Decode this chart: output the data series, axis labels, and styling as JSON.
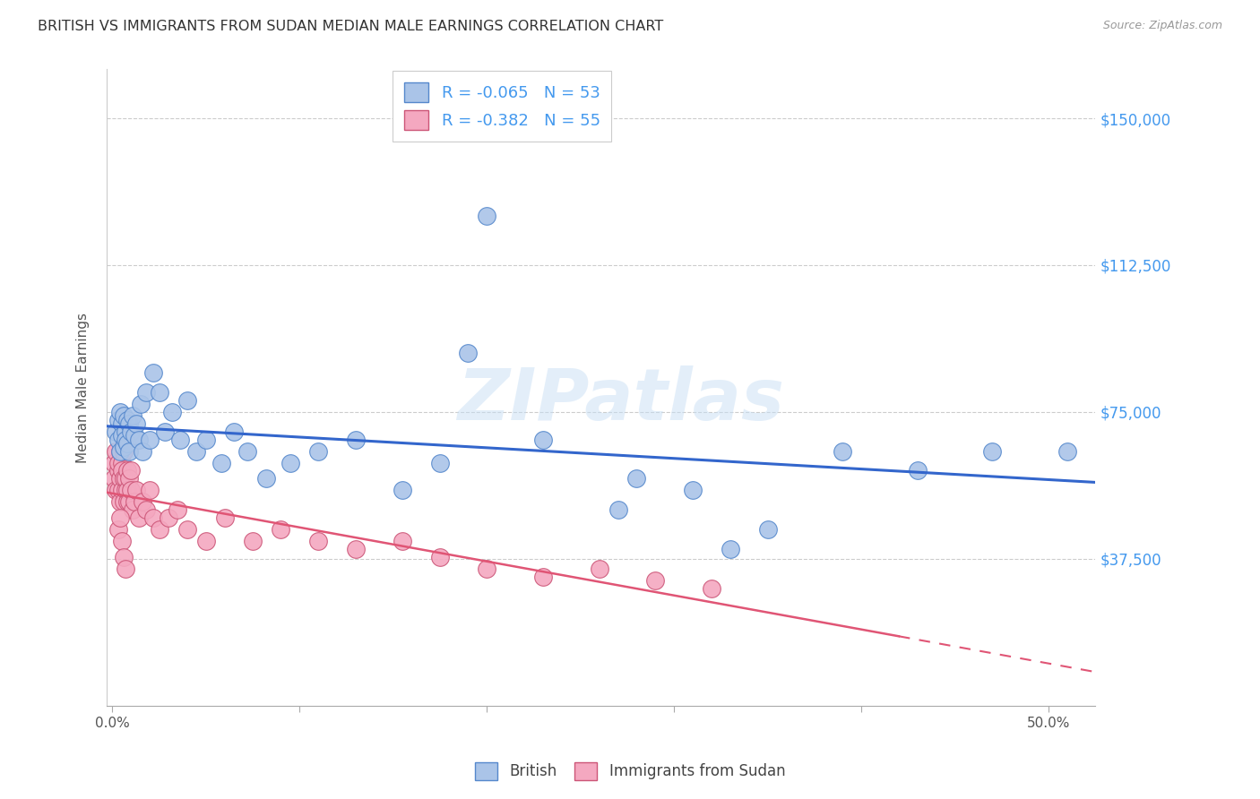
{
  "title": "BRITISH VS IMMIGRANTS FROM SUDAN MEDIAN MALE EARNINGS CORRELATION CHART",
  "source": "Source: ZipAtlas.com",
  "ylabel": "Median Male Earnings",
  "ytick_labels": [
    "$37,500",
    "$75,000",
    "$112,500",
    "$150,000"
  ],
  "ytick_values": [
    37500,
    75000,
    112500,
    150000
  ],
  "ymin": 0,
  "ymax": 162500,
  "xmin": -0.003,
  "xmax": 0.525,
  "watermark": "ZIPatlas",
  "legend_british_r": "-0.065",
  "legend_british_n": "53",
  "legend_sudan_r": "-0.382",
  "legend_sudan_n": "55",
  "british_color": "#aac4e8",
  "british_edge": "#5588cc",
  "sudan_color": "#f4a8c0",
  "sudan_edge": "#cc5577",
  "british_line_color": "#3366cc",
  "sudan_line_color": "#e05575",
  "background_color": "#ffffff",
  "grid_color": "#cccccc",
  "title_color": "#333333",
  "axis_label_color": "#555555",
  "right_tick_color": "#4499ee",
  "sudan_line_solid_end": 0.42,
  "british_x": [
    0.002,
    0.003,
    0.003,
    0.004,
    0.004,
    0.005,
    0.005,
    0.006,
    0.006,
    0.007,
    0.007,
    0.008,
    0.008,
    0.009,
    0.009,
    0.01,
    0.011,
    0.012,
    0.013,
    0.014,
    0.015,
    0.016,
    0.018,
    0.02,
    0.022,
    0.025,
    0.028,
    0.032,
    0.036,
    0.04,
    0.045,
    0.05,
    0.058,
    0.065,
    0.072,
    0.082,
    0.095,
    0.11,
    0.13,
    0.155,
    0.175,
    0.2,
    0.23,
    0.27,
    0.31,
    0.35,
    0.39,
    0.43,
    0.47,
    0.51,
    0.33,
    0.28,
    0.19
  ],
  "british_y": [
    70000,
    73000,
    68000,
    75000,
    65000,
    72000,
    69000,
    74000,
    66000,
    70000,
    68000,
    73000,
    67000,
    72000,
    65000,
    70000,
    74000,
    69000,
    72000,
    68000,
    77000,
    65000,
    80000,
    68000,
    85000,
    80000,
    70000,
    75000,
    68000,
    78000,
    65000,
    68000,
    62000,
    70000,
    65000,
    58000,
    62000,
    65000,
    68000,
    55000,
    62000,
    125000,
    68000,
    50000,
    55000,
    45000,
    65000,
    60000,
    65000,
    65000,
    40000,
    58000,
    90000
  ],
  "sudan_x": [
    0.001,
    0.001,
    0.002,
    0.002,
    0.003,
    0.003,
    0.003,
    0.004,
    0.004,
    0.004,
    0.005,
    0.005,
    0.005,
    0.006,
    0.006,
    0.006,
    0.007,
    0.007,
    0.008,
    0.008,
    0.008,
    0.009,
    0.009,
    0.01,
    0.01,
    0.011,
    0.012,
    0.013,
    0.014,
    0.016,
    0.018,
    0.02,
    0.022,
    0.025,
    0.03,
    0.035,
    0.04,
    0.05,
    0.06,
    0.075,
    0.09,
    0.11,
    0.13,
    0.155,
    0.175,
    0.2,
    0.23,
    0.26,
    0.29,
    0.32,
    0.003,
    0.004,
    0.005,
    0.006,
    0.007
  ],
  "sudan_y": [
    62000,
    58000,
    65000,
    55000,
    60000,
    62000,
    55000,
    65000,
    58000,
    52000,
    62000,
    55000,
    60000,
    58000,
    52000,
    65000,
    55000,
    58000,
    60000,
    52000,
    55000,
    58000,
    52000,
    60000,
    55000,
    50000,
    52000,
    55000,
    48000,
    52000,
    50000,
    55000,
    48000,
    45000,
    48000,
    50000,
    45000,
    42000,
    48000,
    42000,
    45000,
    42000,
    40000,
    42000,
    38000,
    35000,
    33000,
    35000,
    32000,
    30000,
    45000,
    48000,
    42000,
    38000,
    35000
  ],
  "xtick_positions": [
    0.0,
    0.1,
    0.2,
    0.3,
    0.4,
    0.5
  ],
  "xtick_labels_show": [
    "0.0%",
    "",
    "",
    "",
    "",
    "50.0%"
  ]
}
